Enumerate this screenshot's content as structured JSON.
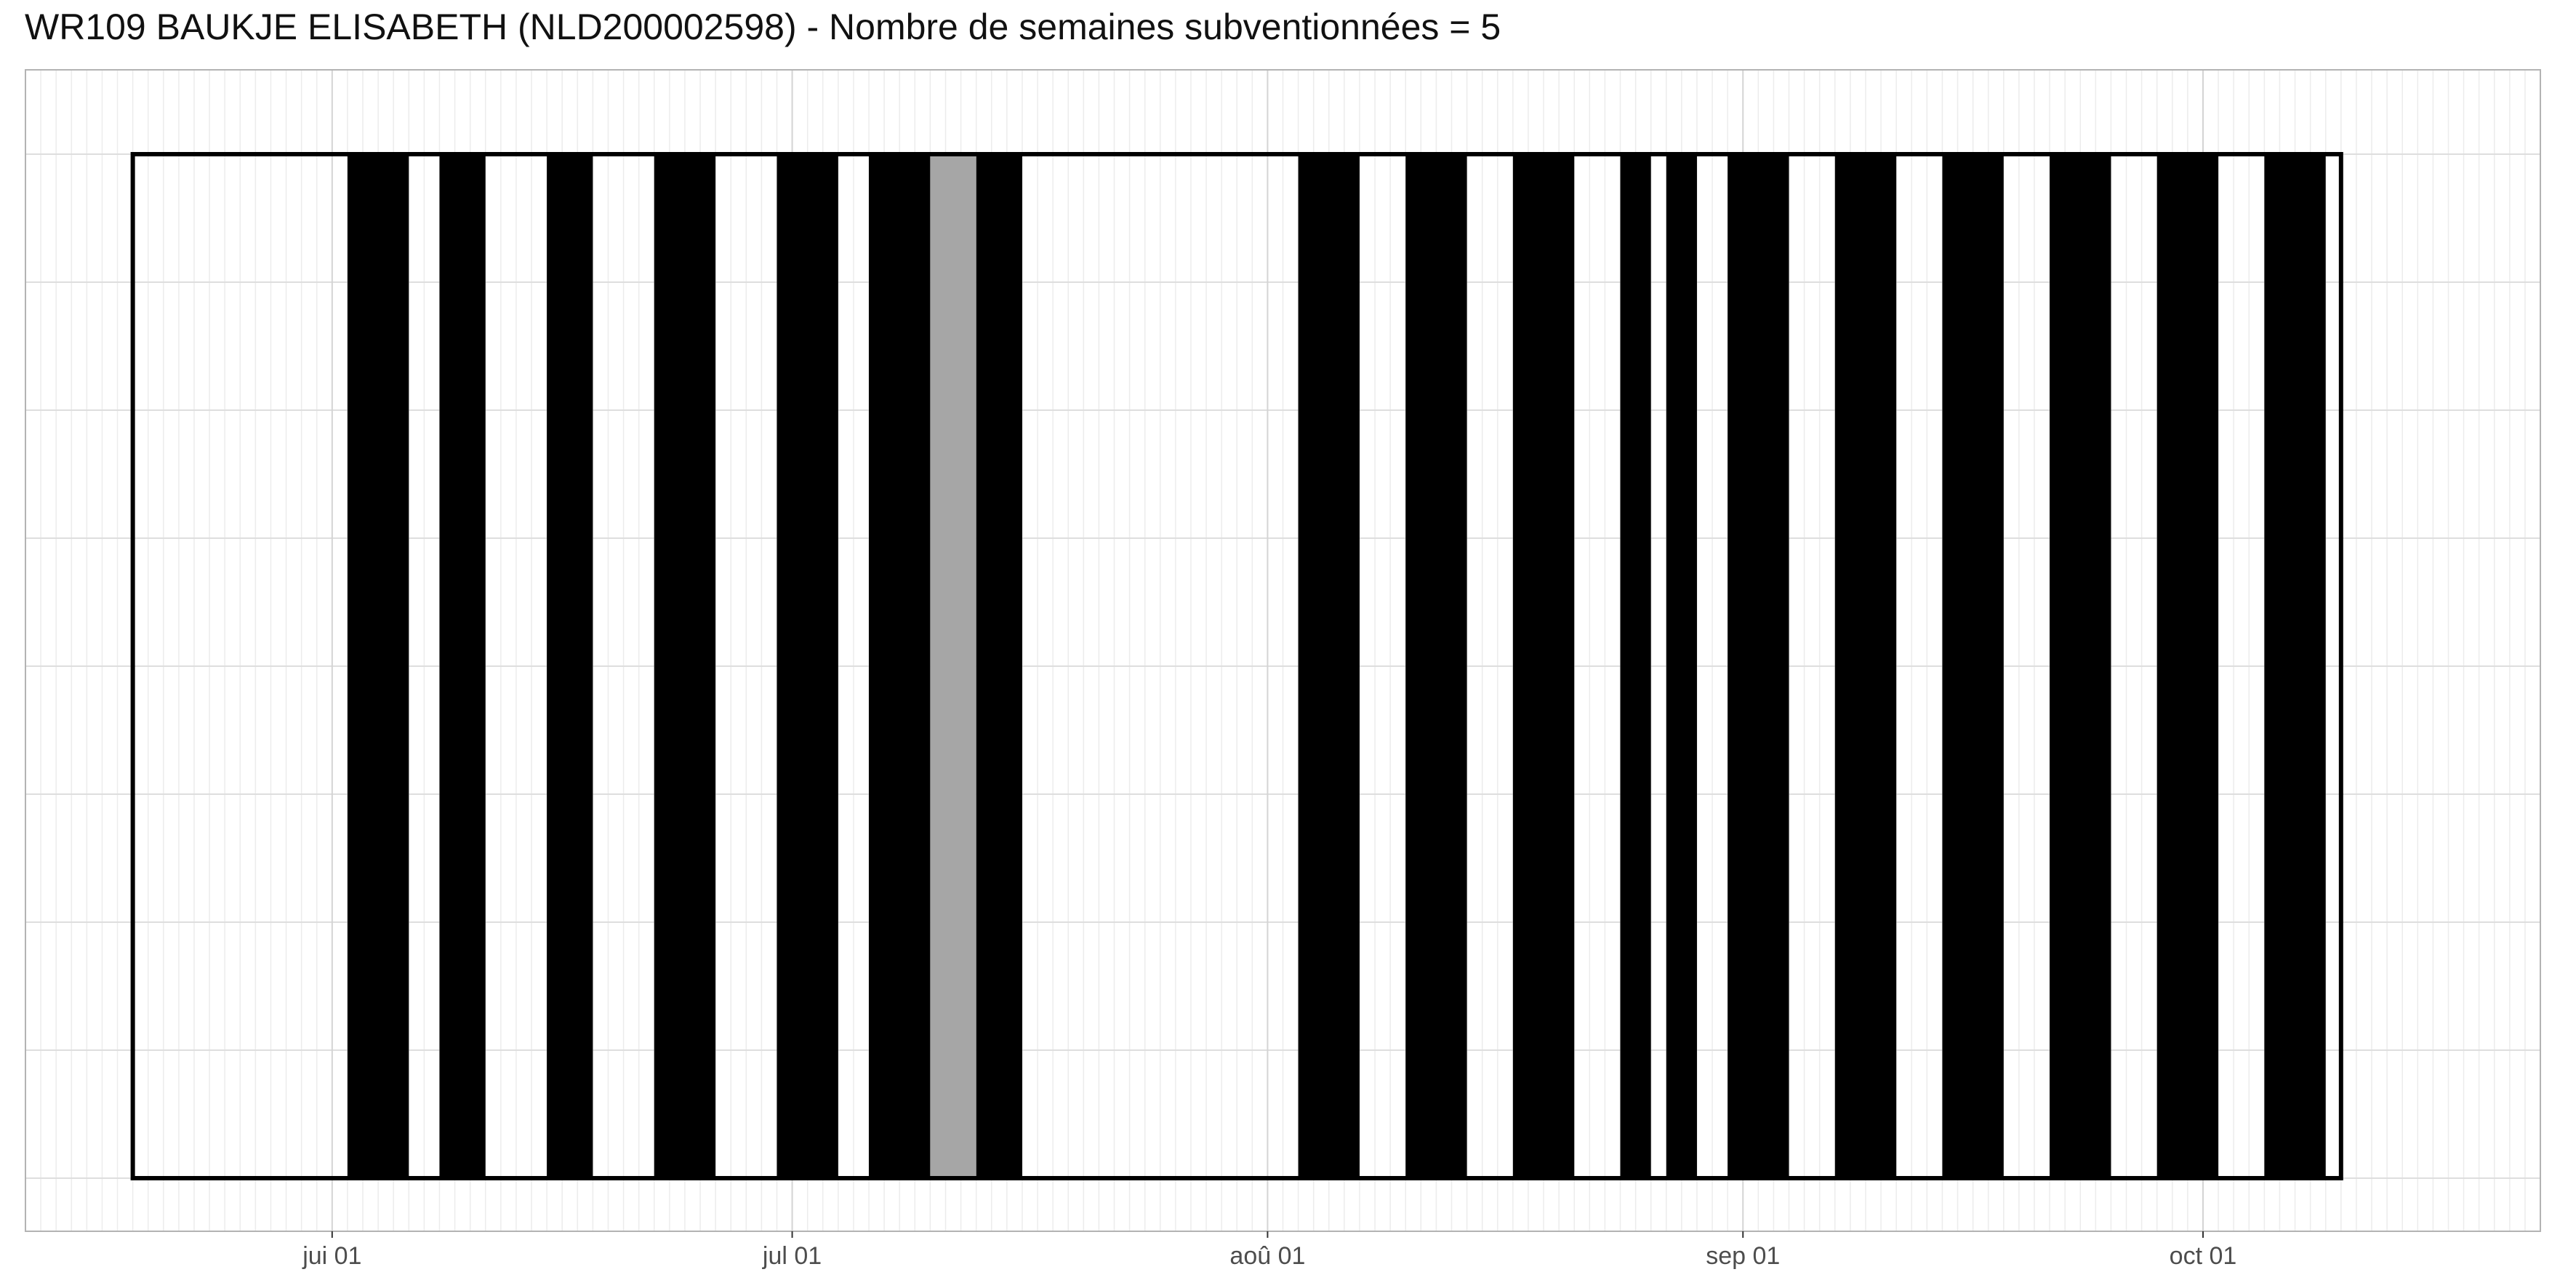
{
  "chart_data": {
    "type": "bar",
    "title": "WR109 BAUKJE ELISABETH (NLD200002598) - Nombre de semaines subventionnées = 5",
    "x_axis": {
      "type": "date",
      "range": [
        "2023-05-12",
        "2023-10-23"
      ],
      "ticks": [
        {
          "date": "2023-06-01",
          "label": "jui 01"
        },
        {
          "date": "2023-07-01",
          "label": "jul 01"
        },
        {
          "date": "2023-08-01",
          "label": "aoû 01"
        },
        {
          "date": "2023-09-01",
          "label": "sep 01"
        },
        {
          "date": "2023-10-01",
          "label": "oct 01"
        }
      ]
    },
    "y_axis": {
      "range": [
        0,
        1
      ],
      "tick_labels": "none"
    },
    "grid": true,
    "frame": {
      "start": "2023-05-19",
      "end": "2023-10-10"
    },
    "series": [
      {
        "color": "#000000",
        "intervals": [
          [
            "2023-06-02",
            "2023-06-06"
          ],
          [
            "2023-06-08",
            "2023-06-11"
          ],
          [
            "2023-06-15",
            "2023-06-18"
          ],
          [
            "2023-06-22",
            "2023-06-26"
          ],
          [
            "2023-06-30",
            "2023-07-04"
          ],
          [
            "2023-07-06",
            "2023-07-10"
          ],
          [
            "2023-07-13",
            "2023-07-16"
          ],
          [
            "2023-08-03",
            "2023-08-07"
          ],
          [
            "2023-08-10",
            "2023-08-14"
          ],
          [
            "2023-08-17",
            "2023-08-21"
          ],
          [
            "2023-08-24",
            "2023-08-26"
          ],
          [
            "2023-08-27",
            "2023-08-29"
          ],
          [
            "2023-08-31",
            "2023-09-04"
          ],
          [
            "2023-09-07",
            "2023-09-11"
          ],
          [
            "2023-09-14",
            "2023-09-18"
          ],
          [
            "2023-09-21",
            "2023-09-25"
          ],
          [
            "2023-09-28",
            "2023-10-02"
          ],
          [
            "2023-10-05",
            "2023-10-09"
          ]
        ]
      },
      {
        "color": "#a6a6a6",
        "intervals": [
          [
            "2023-07-10",
            "2023-07-13"
          ]
        ]
      }
    ]
  }
}
